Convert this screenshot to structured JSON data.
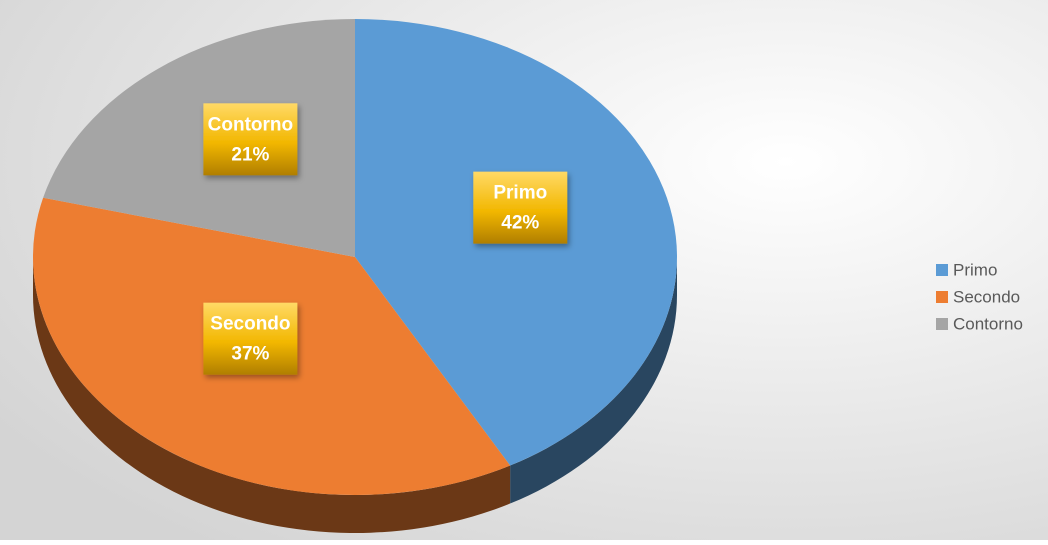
{
  "chart_data": {
    "type": "pie",
    "categories": [
      "Primo",
      "Secondo",
      "Contorno"
    ],
    "values": [
      42,
      37,
      21
    ],
    "value_labels": [
      "42%",
      "37%",
      "21%"
    ],
    "colors": [
      "#5b9bd5",
      "#ed7d31",
      "#a5a5a5"
    ],
    "legend": "right"
  }
}
